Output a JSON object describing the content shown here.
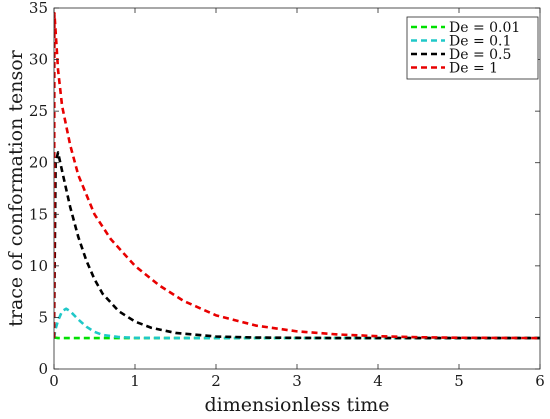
{
  "chart_data": {
    "type": "line",
    "xlabel": "dimensionless time",
    "ylabel": "trace of conformation tensor",
    "xlim": [
      0,
      6
    ],
    "ylim": [
      0,
      35
    ],
    "xticks": [
      0,
      1,
      2,
      3,
      4,
      5,
      6
    ],
    "yticks": [
      0,
      5,
      10,
      15,
      20,
      25,
      30,
      35
    ],
    "grid": false,
    "legend_position": "top-right",
    "series": [
      {
        "name": "De = 0.01",
        "color": "#00e000",
        "style": "dashed",
        "x": [
          0,
          0.01,
          0.03,
          0.05,
          0.1,
          0.5,
          1,
          2,
          3,
          4,
          5,
          6
        ],
        "y": [
          3,
          3.05,
          3.02,
          3.0,
          3.0,
          3.0,
          3.0,
          3.0,
          3.0,
          3.0,
          3.0,
          3.0
        ]
      },
      {
        "name": "De = 0.1",
        "color": "#20c8c8",
        "style": "dashed",
        "x": [
          0,
          0.02,
          0.05,
          0.1,
          0.15,
          0.2,
          0.3,
          0.4,
          0.5,
          0.6,
          0.8,
          1.0,
          1.5,
          2,
          3,
          4,
          5,
          6
        ],
        "y": [
          3.0,
          3.9,
          4.7,
          5.6,
          5.85,
          5.6,
          4.8,
          4.1,
          3.6,
          3.3,
          3.1,
          3.02,
          3.0,
          3.0,
          3.0,
          3.0,
          3.0,
          3.0
        ]
      },
      {
        "name": "De = 0.5",
        "color": "#000000",
        "style": "dashed",
        "x": [
          0,
          0.02,
          0.05,
          0.1,
          0.2,
          0.3,
          0.4,
          0.5,
          0.6,
          0.8,
          1.0,
          1.2,
          1.5,
          2.0,
          2.5,
          3.0,
          3.5,
          4,
          5,
          6
        ],
        "y": [
          3,
          20.0,
          21.0,
          19.2,
          15.7,
          12.8,
          10.5,
          8.7,
          7.3,
          5.6,
          4.6,
          4.0,
          3.5,
          3.15,
          3.05,
          3.02,
          3.0,
          3.0,
          3.0,
          3.0
        ],
        "initial_spike_to": 22
      },
      {
        "name": "De = 1",
        "color": "#e80000",
        "style": "dashed",
        "x": [
          0,
          0.005,
          0.03,
          0.05,
          0.1,
          0.2,
          0.3,
          0.5,
          0.7,
          1.0,
          1.3,
          1.6,
          2.0,
          2.5,
          3.0,
          3.5,
          4.0,
          4.5,
          5.0,
          6.0
        ],
        "y": [
          3,
          34.5,
          31.5,
          29.0,
          25.5,
          21.7,
          18.8,
          15.0,
          12.6,
          10.0,
          8.1,
          6.6,
          5.2,
          4.2,
          3.65,
          3.35,
          3.18,
          3.08,
          3.03,
          3.0
        ],
        "initial_spike_to": 34.5
      }
    ]
  }
}
